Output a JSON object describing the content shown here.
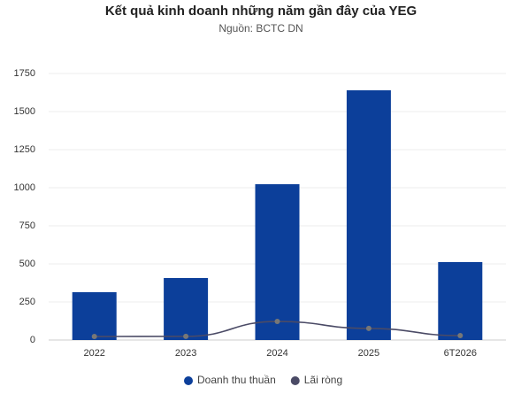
{
  "chart_data": {
    "type": "combo",
    "title": "Kết quả kinh doanh những năm gần đây của YEG",
    "subtitle": "Nguồn: BCTC DN",
    "categories": [
      "2022",
      "2023",
      "2024",
      "2025",
      "6T2026"
    ],
    "series": [
      {
        "name": "Doanh thu thuần",
        "type": "bar",
        "color": "#0c3f9a",
        "values": [
          314,
          407,
          1023,
          1640,
          512
        ]
      },
      {
        "name": "Lãi ròng",
        "type": "line",
        "color": "#4b4b66",
        "values": [
          23,
          24,
          122,
          76,
          29
        ]
      }
    ],
    "ylim": [
      0,
      1750
    ],
    "yticks": [
      0,
      250,
      500,
      750,
      1000,
      1250,
      1500,
      1750
    ],
    "grid": true
  }
}
